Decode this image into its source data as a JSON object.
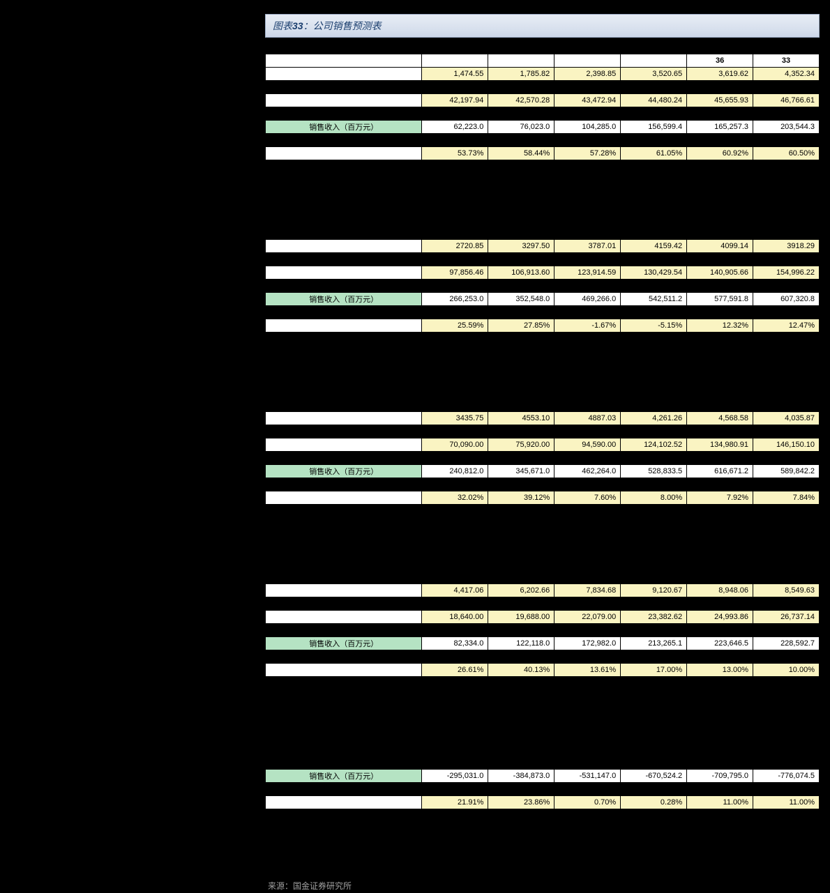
{
  "title_prefix": "图表",
  "title_number": "33",
  "title_text": "：公司销售预测表",
  "source_text": "来源：国金证券研究所",
  "colors": {
    "yellow": "#faf4c2",
    "green": "#b5e3c3",
    "header_bg": "#e8edf5",
    "border": "#000"
  },
  "col_widths": {
    "label": 225,
    "data": 95
  },
  "fontsize": 11,
  "rows": [
    {
      "type": "black"
    },
    {
      "type": "header",
      "label": "",
      "cells": [
        "",
        "",
        "",
        "",
        "36",
        "33"
      ]
    },
    {
      "type": "yellow",
      "label": "",
      "cells": [
        "1,474.55",
        "1,785.82",
        "2,398.85",
        "3,520.65",
        "3,619.62",
        "4,352.34"
      ]
    },
    {
      "type": "black"
    },
    {
      "type": "yellow",
      "label": "",
      "cells": [
        "42,197.94",
        "42,570.28",
        "43,472.94",
        "44,480.24",
        "45,655.93",
        "46,766.61"
      ]
    },
    {
      "type": "black"
    },
    {
      "type": "green",
      "label": "销售收入（百万元）",
      "cells": [
        "62,223.0",
        "76,023.0",
        "104,285.0",
        "156,599.4",
        "165,257.3",
        "203,544.3"
      ]
    },
    {
      "type": "black"
    },
    {
      "type": "yellow",
      "label": "",
      "cells": [
        "53.73%",
        "58.44%",
        "57.28%",
        "61.05%",
        "60.92%",
        "60.50%"
      ]
    },
    {
      "type": "black"
    },
    {
      "type": "black"
    },
    {
      "type": "black"
    },
    {
      "type": "black"
    },
    {
      "type": "black"
    },
    {
      "type": "black"
    },
    {
      "type": "yellow",
      "label": "",
      "cells": [
        "2720.85",
        "3297.50",
        "3787.01",
        "4159.42",
        "4099.14",
        "3918.29"
      ]
    },
    {
      "type": "black"
    },
    {
      "type": "yellow",
      "label": "",
      "cells": [
        "97,856.46",
        "106,913.60",
        "123,914.59",
        "130,429.54",
        "140,905.66",
        "154,996.22"
      ]
    },
    {
      "type": "black"
    },
    {
      "type": "green",
      "label": "销售收入（百万元）",
      "cells": [
        "266,253.0",
        "352,548.0",
        "469,266.0",
        "542,511.2",
        "577,591.8",
        "607,320.8"
      ]
    },
    {
      "type": "black"
    },
    {
      "type": "yellow",
      "label": "",
      "cells": [
        "25.59%",
        "27.85%",
        "-1.67%",
        "-5.15%",
        "12.32%",
        "12.47%"
      ]
    },
    {
      "type": "black"
    },
    {
      "type": "black"
    },
    {
      "type": "black"
    },
    {
      "type": "black"
    },
    {
      "type": "black"
    },
    {
      "type": "black"
    },
    {
      "type": "yellow",
      "label": "",
      "cells": [
        "3435.75",
        "4553.10",
        "4887.03",
        "4,261.26",
        "4,568.58",
        "4,035.87"
      ]
    },
    {
      "type": "black"
    },
    {
      "type": "yellow",
      "label": "",
      "cells": [
        "70,090.00",
        "75,920.00",
        "94,590.00",
        "124,102.52",
        "134,980.91",
        "146,150.10"
      ]
    },
    {
      "type": "black"
    },
    {
      "type": "green",
      "label": "销售收入（百万元）",
      "cells": [
        "240,812.0",
        "345,671.0",
        "462,264.0",
        "528,833.5",
        "616,671.2",
        "589,842.2"
      ]
    },
    {
      "type": "black"
    },
    {
      "type": "yellow",
      "label": "",
      "cells": [
        "32.02%",
        "39.12%",
        "7.60%",
        "8.00%",
        "7.92%",
        "7.84%"
      ]
    },
    {
      "type": "black"
    },
    {
      "type": "black"
    },
    {
      "type": "black"
    },
    {
      "type": "black"
    },
    {
      "type": "black"
    },
    {
      "type": "black"
    },
    {
      "type": "yellow",
      "label": "",
      "cells": [
        "4,417.06",
        "6,202.66",
        "7,834.68",
        "9,120.67",
        "8,948.06",
        "8,549.63"
      ]
    },
    {
      "type": "black"
    },
    {
      "type": "yellow",
      "label": "",
      "cells": [
        "18,640.00",
        "19,688.00",
        "22,079.00",
        "23,382.62",
        "24,993.86",
        "26,737.14"
      ]
    },
    {
      "type": "black"
    },
    {
      "type": "green",
      "label": "销售收入（百万元）",
      "cells": [
        "82,334.0",
        "122,118.0",
        "172,982.0",
        "213,265.1",
        "223,646.5",
        "228,592.7"
      ]
    },
    {
      "type": "black"
    },
    {
      "type": "yellow",
      "label": "",
      "cells": [
        "26.61%",
        "40.13%",
        "13.61%",
        "17.00%",
        "13.00%",
        "10.00%"
      ]
    },
    {
      "type": "black"
    },
    {
      "type": "black"
    },
    {
      "type": "black"
    },
    {
      "type": "black"
    },
    {
      "type": "black"
    },
    {
      "type": "black"
    },
    {
      "type": "black"
    },
    {
      "type": "green",
      "label": "销售收入（百万元）",
      "cells": [
        "-295,031.0",
        "-384,873.0",
        "-531,147.0",
        "-670,524.2",
        "-709,795.0",
        "-776,074.5"
      ]
    },
    {
      "type": "black"
    },
    {
      "type": "yellow",
      "label": "",
      "cells": [
        "21.91%",
        "23.86%",
        "0.70%",
        "0.28%",
        "11.00%",
        "11.00%"
      ]
    },
    {
      "type": "black"
    },
    {
      "type": "black"
    },
    {
      "type": "black"
    },
    {
      "type": "black"
    },
    {
      "type": "black"
    }
  ]
}
